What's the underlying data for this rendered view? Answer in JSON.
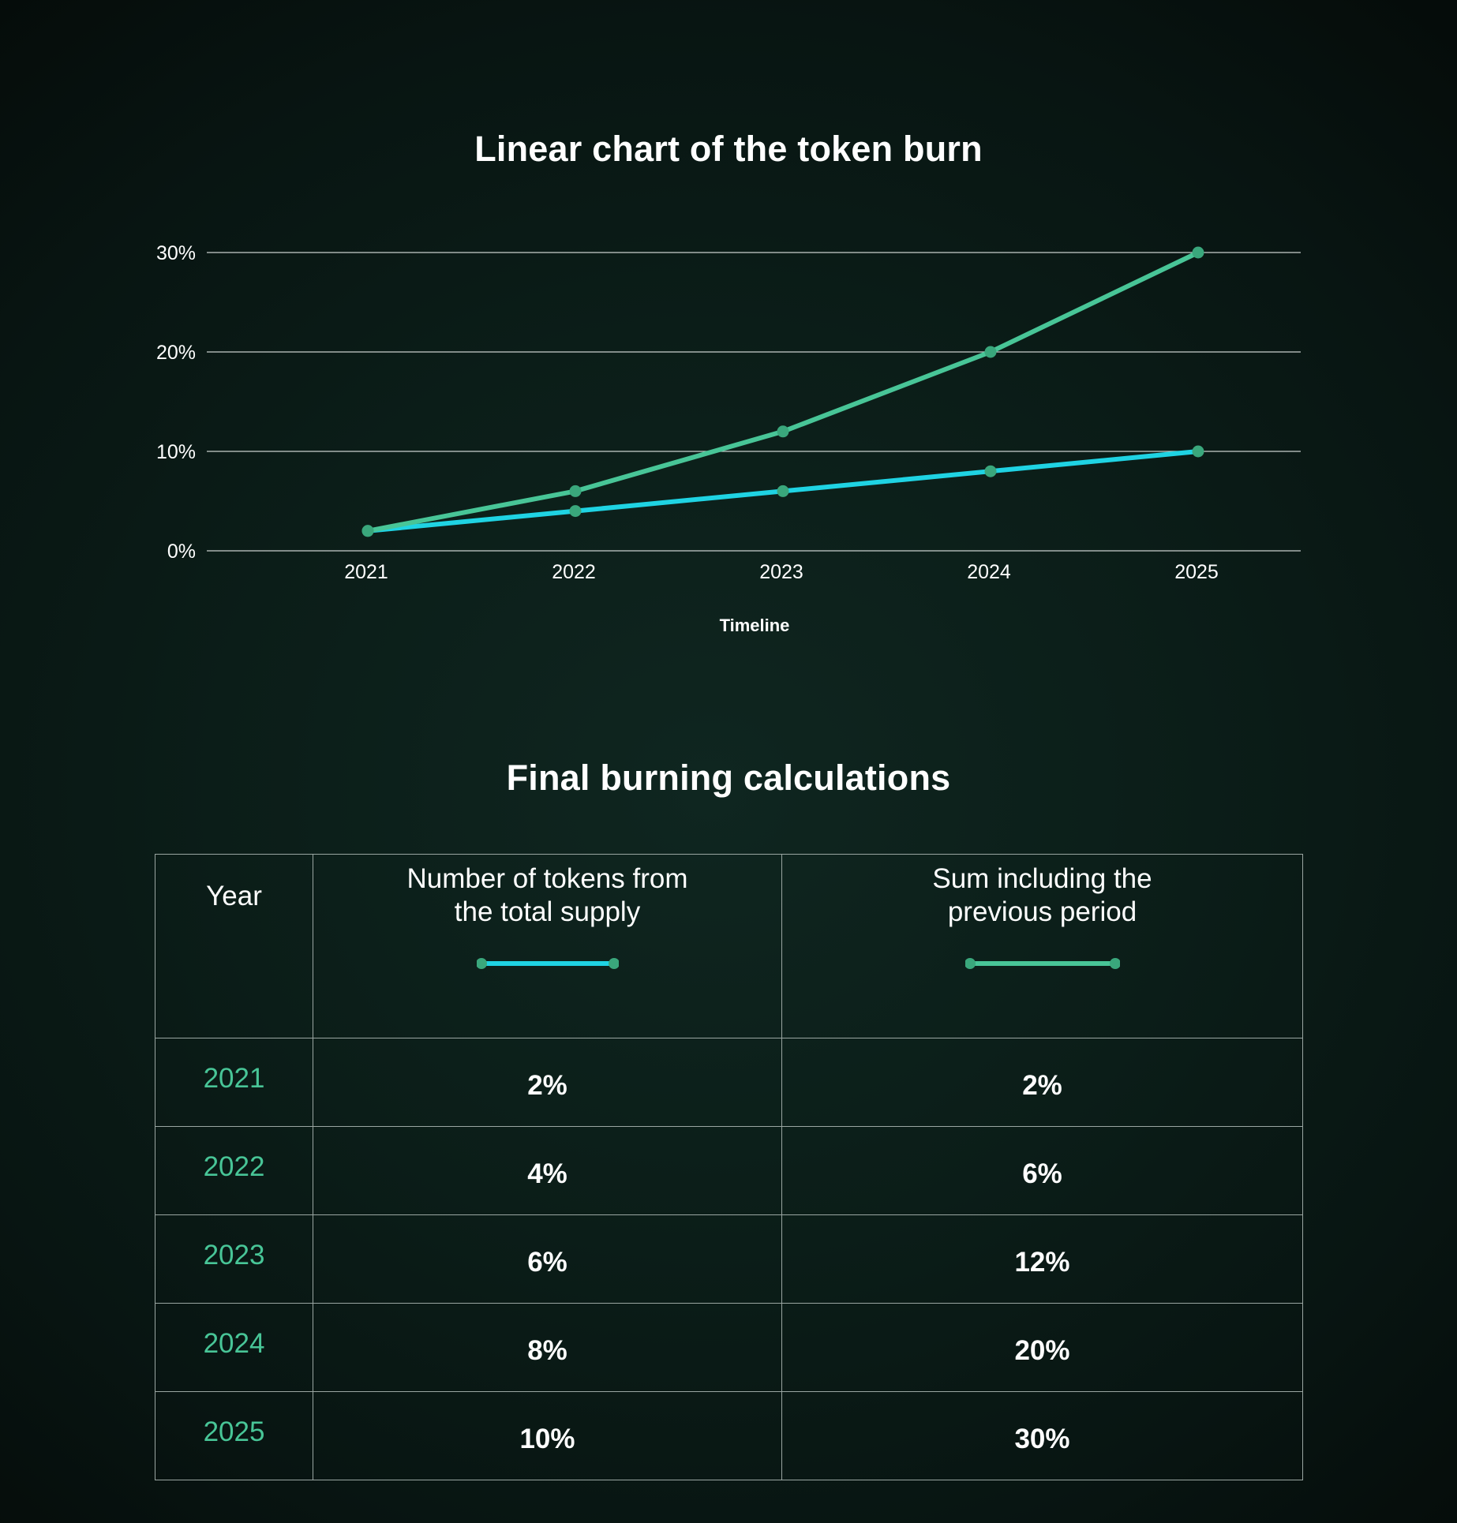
{
  "chart_data": {
    "type": "line",
    "title": "Linear chart of the token burn",
    "xlabel": "Timeline",
    "ylabel": "",
    "x": [
      "2021",
      "2022",
      "2023",
      "2024",
      "2025"
    ],
    "y_ticks": [
      "0%",
      "10%",
      "20%",
      "30%"
    ],
    "ylim": [
      0,
      30
    ],
    "grid": true,
    "series": [
      {
        "values": [
          2,
          4,
          6,
          8,
          10
        ],
        "color": "#1fd3e3"
      },
      {
        "values": [
          2,
          6,
          12,
          20,
          30
        ],
        "color": "#48c597"
      }
    ],
    "marker_color": "#3aa77c"
  },
  "table": {
    "title": "Final burning calculations",
    "headers": {
      "year": "Year",
      "tokens": "Number of tokens from the total supply",
      "sum": "Sum including the previous period"
    },
    "rows": [
      {
        "year": "2021",
        "tokens": "2%",
        "sum": "2%"
      },
      {
        "year": "2022",
        "tokens": "4%",
        "sum": "6%"
      },
      {
        "year": "2023",
        "tokens": "6%",
        "sum": "12%"
      },
      {
        "year": "2024",
        "tokens": "8%",
        "sum": "20%"
      },
      {
        "year": "2025",
        "tokens": "10%",
        "sum": "30%"
      }
    ]
  }
}
